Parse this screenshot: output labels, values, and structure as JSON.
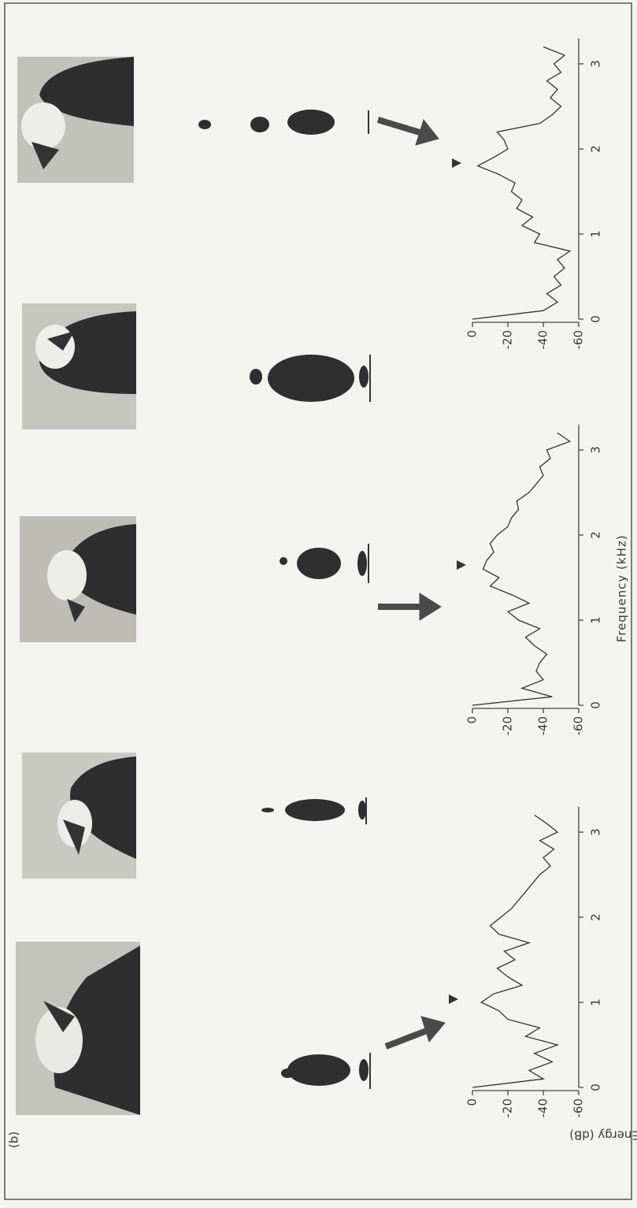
{
  "panel_label": "(b)",
  "chart_data": [
    {
      "type": "line",
      "ylabel": "Energy (dB)",
      "color": "#333333",
      "x": [
        0,
        0.1,
        0.2,
        0.3,
        0.4,
        0.5,
        0.6,
        0.7,
        0.8,
        0.9,
        1.0,
        1.1,
        1.2,
        1.3,
        1.4,
        1.5,
        1.6,
        1.7,
        1.8,
        1.9,
        2.0,
        2.1,
        2.2,
        2.3,
        2.4,
        2.5,
        2.6,
        2.7,
        2.8,
        2.9,
        3.0,
        3.1,
        3.2
      ],
      "values": [
        0,
        -40,
        -32,
        -45,
        -35,
        -48,
        -30,
        -38,
        -20,
        -15,
        -5,
        -12,
        -28,
        -20,
        -14,
        -24,
        -18,
        -32,
        -15,
        -10,
        -16,
        -22,
        -26,
        -30,
        -34,
        -38,
        -44,
        -40,
        -46,
        -38,
        -48,
        -42,
        -35
      ],
      "xlim": [
        0,
        3.3
      ],
      "ylim": [
        -60,
        0
      ],
      "xticks": [
        0,
        1,
        2,
        3
      ],
      "yticks": [
        0,
        -20,
        -40,
        -60
      ]
    },
    {
      "type": "line",
      "xlabel": "Frequency (kHz)",
      "color": "#333333",
      "x": [
        0,
        0.1,
        0.2,
        0.3,
        0.4,
        0.5,
        0.6,
        0.7,
        0.8,
        0.9,
        1.0,
        1.1,
        1.2,
        1.3,
        1.4,
        1.5,
        1.6,
        1.7,
        1.8,
        1.9,
        2.0,
        2.1,
        2.2,
        2.3,
        2.4,
        2.5,
        2.6,
        2.7,
        2.8,
        2.9,
        3.0,
        3.1,
        3.2
      ],
      "values": [
        0,
        -45,
        -28,
        -40,
        -36,
        -38,
        -42,
        -35,
        -30,
        -38,
        -26,
        -20,
        -32,
        -22,
        -10,
        -15,
        -6,
        -8,
        -12,
        -10,
        -14,
        -20,
        -22,
        -26,
        -25,
        -32,
        -36,
        -40,
        -38,
        -44,
        -42,
        -55,
        -48
      ],
      "xlim": [
        0,
        3.3
      ],
      "ylim": [
        -60,
        0
      ],
      "xticks": [
        0,
        1,
        2,
        3
      ],
      "yticks": [
        0,
        -20,
        -40,
        -60
      ]
    },
    {
      "type": "line",
      "color": "#333333",
      "x": [
        0,
        0.1,
        0.2,
        0.3,
        0.4,
        0.5,
        0.6,
        0.7,
        0.8,
        0.9,
        1.0,
        1.1,
        1.2,
        1.3,
        1.4,
        1.5,
        1.6,
        1.7,
        1.8,
        1.9,
        2.0,
        2.1,
        2.2,
        2.3,
        2.4,
        2.5,
        2.6,
        2.7,
        2.8,
        2.9,
        3.0,
        3.1,
        3.2
      ],
      "values": [
        0,
        -40,
        -48,
        -42,
        -50,
        -46,
        -52,
        -48,
        -55,
        -35,
        -38,
        -28,
        -34,
        -25,
        -28,
        -22,
        -24,
        -15,
        -3,
        -12,
        -20,
        -18,
        -14,
        -38,
        -45,
        -50,
        -44,
        -48,
        -42,
        -50,
        -46,
        -52,
        -40
      ],
      "xlim": [
        0,
        3.3
      ],
      "ylim": [
        -60,
        0
      ],
      "xticks": [
        0,
        1,
        2,
        3
      ],
      "yticks": [
        0,
        -20,
        -40,
        -60
      ]
    }
  ]
}
